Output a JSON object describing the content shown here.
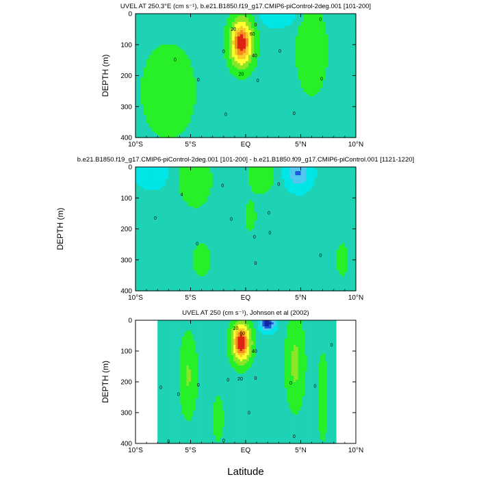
{
  "colors": {
    "cyan": "#00e5e5",
    "teal": "#1ed2b4",
    "green": "#28f028",
    "lgreen": "#8ce628",
    "yellow": "#ffff32",
    "gold": "#f5cd28",
    "orange": "#f58c1e",
    "red": "#dc2314",
    "lblue": "#50c8f0",
    "blue": "#1e5adc",
    "dblue": "#1428a0"
  },
  "xlabel": "Latitude",
  "chart_data": [
    {
      "type": "contour",
      "title": "UVEL AT 250.3°E (cm s⁻¹), b.e21.B1850.f19_g17.CMIP6-piControl-2deg.001 [101-200]",
      "xlabel": "Latitude",
      "ylabel": "DEPTH (m)",
      "xlim": [
        -10,
        10
      ],
      "ylim": [
        400,
        0
      ],
      "xticks": [
        "10°S",
        "5°S",
        "EQ",
        "5°N",
        "10°N"
      ],
      "yticks": [
        "0",
        "100",
        "200",
        "300",
        "400"
      ],
      "data_coverage_lat": [
        -10,
        10
      ],
      "fields": [
        {
          "lat": -0.4,
          "depth": 95,
          "amp": 82,
          "wlat": 0.85,
          "wdepth": 62
        },
        {
          "lat": 6.0,
          "depth": 120,
          "amp": 6,
          "wlat": 1.4,
          "wdepth": 140
        },
        {
          "lat": -7.0,
          "depth": 250,
          "amp": 5,
          "wlat": 2.6,
          "wdepth": 160
        },
        {
          "lat": 3.0,
          "depth": 10,
          "amp": -5,
          "wlat": 1.5,
          "wdepth": 30
        }
      ],
      "base": 1.0,
      "contour_labels": [
        {
          "text": "20",
          "lat": -1.1,
          "depth": 50
        },
        {
          "text": "60",
          "lat": 0.6,
          "depth": 65
        },
        {
          "text": "40",
          "lat": 0.8,
          "depth": 135
        },
        {
          "text": "20",
          "lat": -0.4,
          "depth": 195
        },
        {
          "text": "0",
          "lat": 0.9,
          "depth": 35
        },
        {
          "text": "0",
          "lat": -6.4,
          "depth": 148
        },
        {
          "text": "0",
          "lat": -4.3,
          "depth": 213
        },
        {
          "text": "0",
          "lat": -2.0,
          "depth": 122
        },
        {
          "text": "0",
          "lat": 1.1,
          "depth": 215
        },
        {
          "text": "0",
          "lat": 3.1,
          "depth": 120
        },
        {
          "text": "0",
          "lat": -1.8,
          "depth": 325
        },
        {
          "text": "0",
          "lat": 4.4,
          "depth": 322
        },
        {
          "text": "0",
          "lat": 6.9,
          "depth": 210
        },
        {
          "text": "0",
          "lat": 6.8,
          "depth": 18
        }
      ]
    },
    {
      "type": "contour",
      "title": "b.e21.B1850.f19_g17.CMIP6-piControl-2deg.001 [101-200] - b.e21.B1850.f09_g17.CMIP6-piControl.001 [1121-1220]",
      "xlabel": "Latitude",
      "ylabel": "DEPTH (m)",
      "xlim": [
        -10,
        10
      ],
      "ylim": [
        400,
        0
      ],
      "xticks": [
        "10°S",
        "5°S",
        "EQ",
        "5°N",
        "10°N"
      ],
      "yticks": [
        "0",
        "100",
        "200",
        "300",
        "400"
      ],
      "data_coverage_lat": [
        -10,
        10
      ],
      "fields": [
        {
          "lat": -4.6,
          "depth": 40,
          "amp": 10,
          "wlat": 1.3,
          "wdepth": 70
        },
        {
          "lat": 1.4,
          "depth": 25,
          "amp": 11,
          "wlat": 1.0,
          "wdepth": 50
        },
        {
          "lat": 0.4,
          "depth": 160,
          "amp": 5,
          "wlat": 0.6,
          "wdepth": 60
        },
        {
          "lat": 4.8,
          "depth": 20,
          "amp": -10,
          "wlat": 0.9,
          "wdepth": 40
        },
        {
          "lat": -8.5,
          "depth": 20,
          "amp": -3,
          "wlat": 1.2,
          "wdepth": 40
        },
        {
          "lat": -4.0,
          "depth": 300,
          "amp": 3,
          "wlat": 2.0,
          "wdepth": 150
        },
        {
          "lat": 8.8,
          "depth": 300,
          "amp": 3,
          "wlat": 1.4,
          "wdepth": 140
        }
      ],
      "base": 0.4,
      "contour_labels": [
        {
          "text": "4",
          "lat": -5.8,
          "depth": 88
        },
        {
          "text": "0",
          "lat": -8.2,
          "depth": 165
        },
        {
          "text": "0",
          "lat": -4.4,
          "depth": 248
        },
        {
          "text": "0",
          "lat": -1.3,
          "depth": 168
        },
        {
          "text": "0",
          "lat": 0.8,
          "depth": 225
        },
        {
          "text": "0",
          "lat": 0.9,
          "depth": 310
        },
        {
          "text": "0",
          "lat": 2.1,
          "depth": 148
        },
        {
          "text": "0",
          "lat": 2.2,
          "depth": 212
        },
        {
          "text": "0",
          "lat": 3.0,
          "depth": 55
        },
        {
          "text": "0",
          "lat": 6.8,
          "depth": 285
        },
        {
          "text": "0",
          "lat": -2.1,
          "depth": 60
        }
      ]
    },
    {
      "type": "contour",
      "title": "UVEL AT 250 (cm s⁻¹), Johnson et al (2002)",
      "xlabel": "Latitude",
      "ylabel": "DEPTH (m)",
      "xlim": [
        -10,
        10
      ],
      "ylim": [
        400,
        0
      ],
      "xticks": [
        "10°S",
        "5°S",
        "EQ",
        "5°N",
        "10°N"
      ],
      "yticks": [
        "0",
        "100",
        "200",
        "300",
        "400"
      ],
      "data_coverage_lat": [
        -8,
        8.2
      ],
      "fields": [
        {
          "lat": -0.4,
          "depth": 72,
          "amp": 88,
          "wlat": 0.7,
          "wdepth": 52
        },
        {
          "lat": 4.5,
          "depth": 140,
          "amp": 14,
          "wlat": 0.7,
          "wdepth": 120
        },
        {
          "lat": -5.2,
          "depth": 180,
          "amp": 12,
          "wlat": 0.65,
          "wdepth": 110
        },
        {
          "lat": 2.0,
          "depth": 10,
          "amp": -18,
          "wlat": 0.6,
          "wdepth": 22
        },
        {
          "lat": 7.0,
          "depth": 250,
          "amp": 5,
          "wlat": 0.5,
          "wdepth": 150
        },
        {
          "lat": -2.5,
          "depth": 320,
          "amp": 4,
          "wlat": 0.6,
          "wdepth": 90
        }
      ],
      "base": 1.0,
      "contour_labels": [
        {
          "text": "20",
          "lat": -0.9,
          "depth": 25
        },
        {
          "text": "60",
          "lat": -0.3,
          "depth": 42
        },
        {
          "text": "40",
          "lat": 0.8,
          "depth": 100
        },
        {
          "text": "20",
          "lat": -0.5,
          "depth": 190
        },
        {
          "text": "0",
          "lat": -7.7,
          "depth": 218
        },
        {
          "text": "0",
          "lat": -6.1,
          "depth": 240
        },
        {
          "text": "0",
          "lat": -4.3,
          "depth": 210
        },
        {
          "text": "0",
          "lat": -1.6,
          "depth": 193
        },
        {
          "text": "0",
          "lat": 0.9,
          "depth": 188
        },
        {
          "text": "0",
          "lat": 4.1,
          "depth": 203
        },
        {
          "text": "0",
          "lat": 6.3,
          "depth": 213
        },
        {
          "text": "0",
          "lat": 0.3,
          "depth": 300
        },
        {
          "text": "0",
          "lat": 4.4,
          "depth": 377
        },
        {
          "text": "0",
          "lat": -7.0,
          "depth": 393
        },
        {
          "text": "0",
          "lat": -2.0,
          "depth": 390
        },
        {
          "text": "0",
          "lat": 7.8,
          "depth": 80
        }
      ]
    }
  ]
}
